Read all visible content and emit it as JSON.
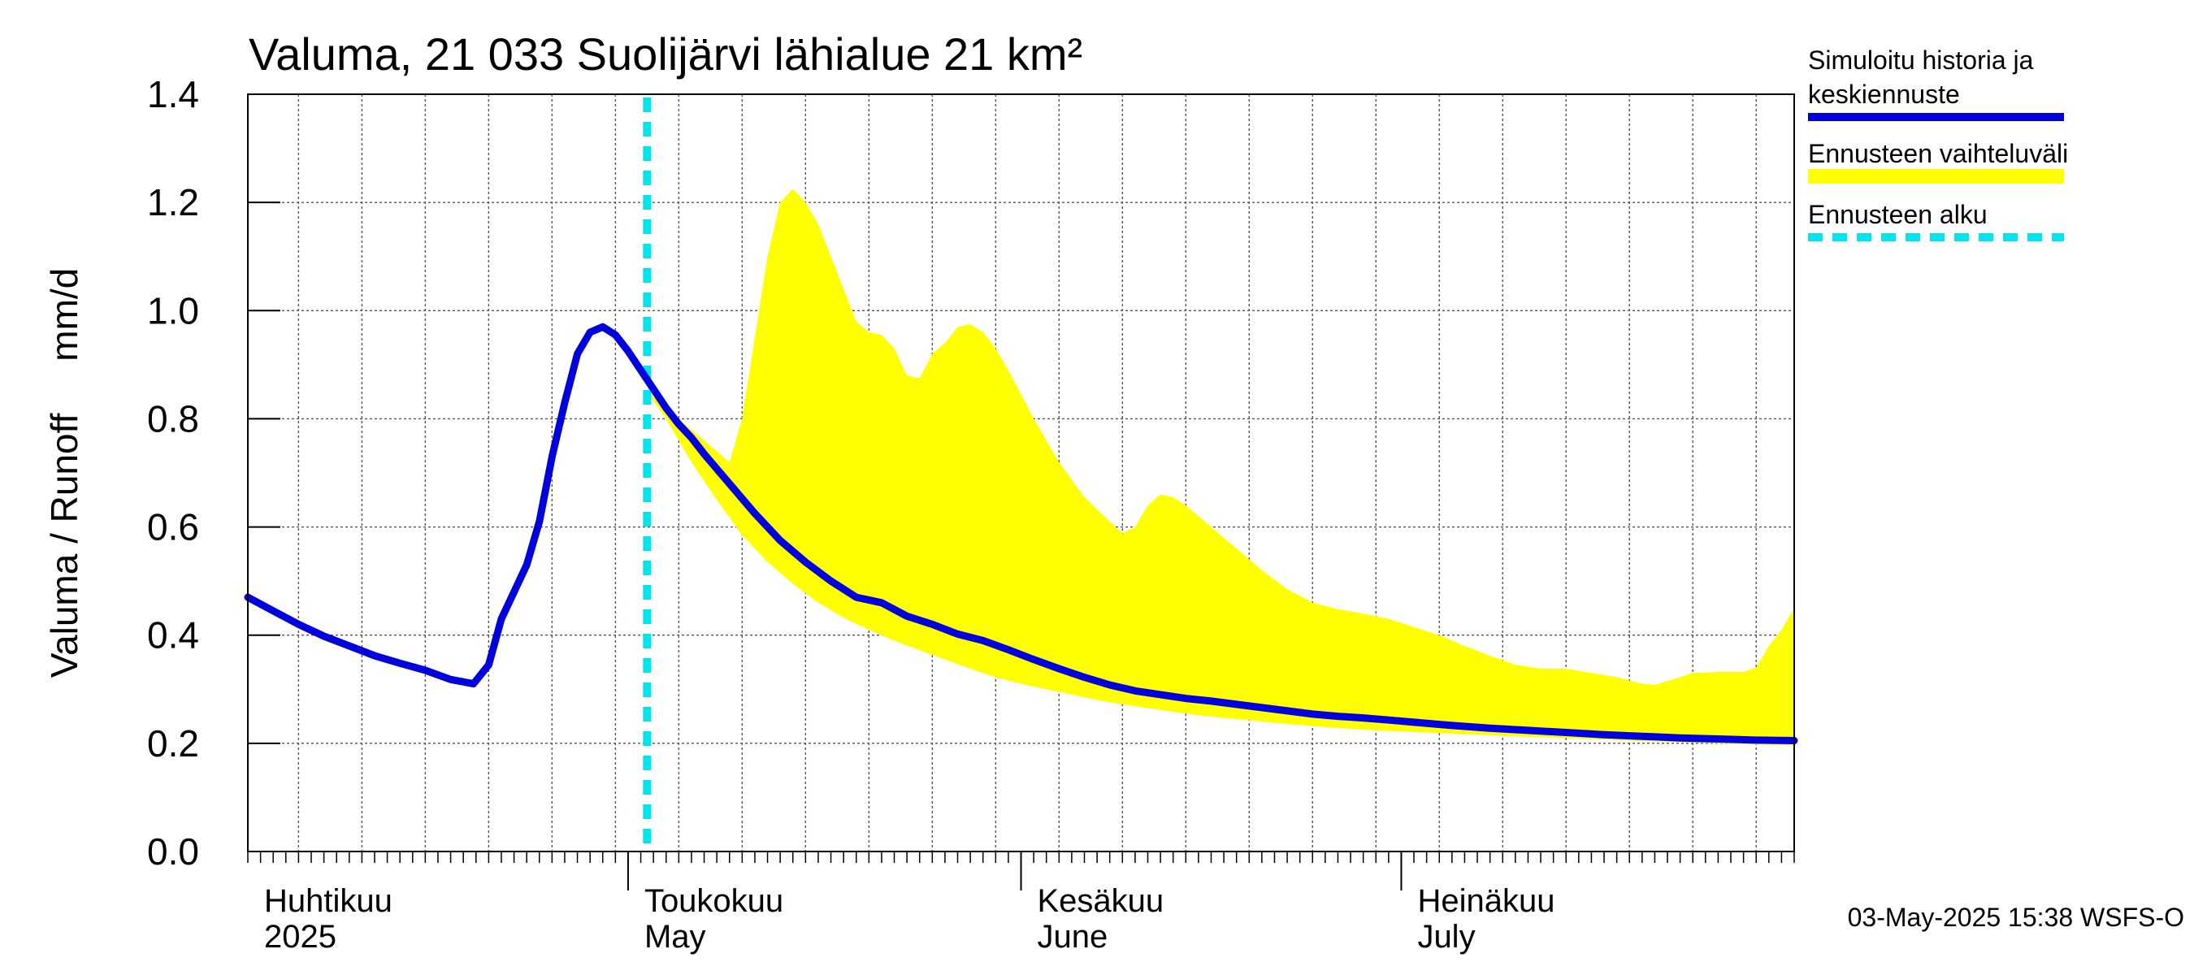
{
  "chart_data": {
    "type": "line",
    "title": "Valuma, 21 033 Suolijärvi lähialue 21 km²",
    "ylabel": "Valuma / Runoff     mm/d",
    "ylim": [
      0,
      1.4
    ],
    "yticks": [
      "0.0",
      "0.2",
      "0.4",
      "0.6",
      "0.8",
      "1.0",
      "1.2",
      "1.4"
    ],
    "x_range_days": [
      0,
      122
    ],
    "month_labels": [
      {
        "line1": "Huhtikuu",
        "line2": "2025",
        "day": 0
      },
      {
        "line1": "Toukokuu",
        "line2": "May",
        "day": 30
      },
      {
        "line1": "Kesäkuu",
        "line2": "June",
        "day": 61
      },
      {
        "line1": "Heinäkuu",
        "line2": "July",
        "day": 91
      }
    ],
    "forecast_start_day": 31.5,
    "history": {
      "name": "Simuloitu historia ja keskiennuste",
      "color": "#0000dd",
      "points": [
        [
          0,
          0.47
        ],
        [
          2,
          0.445
        ],
        [
          4,
          0.42
        ],
        [
          6,
          0.398
        ],
        [
          8,
          0.38
        ],
        [
          10,
          0.362
        ],
        [
          12,
          0.348
        ],
        [
          14,
          0.335
        ],
        [
          16,
          0.318
        ],
        [
          17.8,
          0.31
        ],
        [
          19,
          0.345
        ],
        [
          20,
          0.43
        ],
        [
          21,
          0.48
        ],
        [
          22,
          0.53
        ],
        [
          23,
          0.61
        ],
        [
          24,
          0.73
        ],
        [
          25,
          0.83
        ],
        [
          26,
          0.92
        ],
        [
          27,
          0.96
        ],
        [
          28,
          0.97
        ],
        [
          29,
          0.955
        ],
        [
          30,
          0.925
        ],
        [
          31,
          0.89
        ],
        [
          32,
          0.855
        ],
        [
          33,
          0.82
        ],
        [
          34,
          0.79
        ],
        [
          35,
          0.765
        ],
        [
          36,
          0.735
        ],
        [
          38,
          0.68
        ],
        [
          40,
          0.625
        ],
        [
          42,
          0.575
        ],
        [
          44,
          0.535
        ],
        [
          46,
          0.5
        ],
        [
          48,
          0.47
        ],
        [
          50,
          0.46
        ],
        [
          52,
          0.435
        ],
        [
          54,
          0.42
        ],
        [
          56,
          0.402
        ],
        [
          58,
          0.39
        ],
        [
          60,
          0.373
        ],
        [
          62,
          0.355
        ],
        [
          64,
          0.338
        ],
        [
          66,
          0.322
        ],
        [
          68,
          0.308
        ],
        [
          70,
          0.297
        ],
        [
          72,
          0.29
        ],
        [
          74,
          0.283
        ],
        [
          76,
          0.278
        ],
        [
          78,
          0.272
        ],
        [
          80,
          0.266
        ],
        [
          82,
          0.26
        ],
        [
          84,
          0.254
        ],
        [
          86,
          0.25
        ],
        [
          88,
          0.247
        ],
        [
          90,
          0.243
        ],
        [
          92,
          0.239
        ],
        [
          95,
          0.233
        ],
        [
          98,
          0.228
        ],
        [
          101,
          0.224
        ],
        [
          104,
          0.22
        ],
        [
          107,
          0.216
        ],
        [
          110,
          0.213
        ],
        [
          113,
          0.21
        ],
        [
          116,
          0.208
        ],
        [
          119,
          0.206
        ],
        [
          122,
          0.205
        ]
      ]
    },
    "range_band": {
      "name": "Ennusteen vaihteluväli",
      "color": "#ffff00",
      "upper": [
        [
          31.5,
          0.85
        ],
        [
          33,
          0.82
        ],
        [
          35,
          0.78
        ],
        [
          37,
          0.74
        ],
        [
          38,
          0.72
        ],
        [
          39,
          0.8
        ],
        [
          40,
          0.95
        ],
        [
          41,
          1.1
        ],
        [
          42,
          1.2
        ],
        [
          43,
          1.225
        ],
        [
          44,
          1.2
        ],
        [
          45,
          1.16
        ],
        [
          46,
          1.1
        ],
        [
          47,
          1.04
        ],
        [
          48,
          0.98
        ],
        [
          49,
          0.96
        ],
        [
          50,
          0.955
        ],
        [
          51,
          0.93
        ],
        [
          52,
          0.88
        ],
        [
          53,
          0.875
        ],
        [
          54,
          0.92
        ],
        [
          55,
          0.94
        ],
        [
          56,
          0.97
        ],
        [
          57,
          0.975
        ],
        [
          58,
          0.96
        ],
        [
          59,
          0.93
        ],
        [
          60,
          0.89
        ],
        [
          62,
          0.8
        ],
        [
          64,
          0.72
        ],
        [
          66,
          0.655
        ],
        [
          68,
          0.61
        ],
        [
          69,
          0.588
        ],
        [
          70,
          0.6
        ],
        [
          71,
          0.64
        ],
        [
          72,
          0.66
        ],
        [
          73,
          0.655
        ],
        [
          74,
          0.64
        ],
        [
          76,
          0.6
        ],
        [
          78,
          0.56
        ],
        [
          80,
          0.52
        ],
        [
          82,
          0.485
        ],
        [
          84,
          0.46
        ],
        [
          86,
          0.448
        ],
        [
          88,
          0.44
        ],
        [
          90,
          0.43
        ],
        [
          92,
          0.415
        ],
        [
          94,
          0.4
        ],
        [
          96,
          0.38
        ],
        [
          98,
          0.362
        ],
        [
          100,
          0.345
        ],
        [
          102,
          0.338
        ],
        [
          104,
          0.338
        ],
        [
          106,
          0.33
        ],
        [
          108,
          0.322
        ],
        [
          110,
          0.31
        ],
        [
          111,
          0.308
        ],
        [
          112,
          0.315
        ],
        [
          114,
          0.33
        ],
        [
          116,
          0.332
        ],
        [
          118,
          0.332
        ],
        [
          119,
          0.34
        ],
        [
          120,
          0.38
        ],
        [
          121,
          0.41
        ],
        [
          122,
          0.45
        ]
      ],
      "lower": [
        [
          31.5,
          0.85
        ],
        [
          33,
          0.8
        ],
        [
          35,
          0.72
        ],
        [
          37,
          0.65
        ],
        [
          39,
          0.585
        ],
        [
          41,
          0.535
        ],
        [
          43,
          0.495
        ],
        [
          45,
          0.46
        ],
        [
          47,
          0.432
        ],
        [
          49,
          0.41
        ],
        [
          51,
          0.39
        ],
        [
          53,
          0.372
        ],
        [
          55,
          0.355
        ],
        [
          57,
          0.338
        ],
        [
          59,
          0.322
        ],
        [
          61,
          0.31
        ],
        [
          63,
          0.3
        ],
        [
          65,
          0.29
        ],
        [
          67,
          0.28
        ],
        [
          69,
          0.272
        ],
        [
          71,
          0.265
        ],
        [
          73,
          0.258
        ],
        [
          75,
          0.252
        ],
        [
          77,
          0.247
        ],
        [
          79,
          0.243
        ],
        [
          81,
          0.238
        ],
        [
          83,
          0.234
        ],
        [
          85,
          0.23
        ],
        [
          87,
          0.227
        ],
        [
          89,
          0.224
        ],
        [
          92,
          0.221
        ],
        [
          95,
          0.218
        ],
        [
          98,
          0.215
        ],
        [
          101,
          0.212
        ],
        [
          104,
          0.21
        ],
        [
          107,
          0.207
        ],
        [
          110,
          0.204
        ],
        [
          113,
          0.202
        ],
        [
          116,
          0.2
        ],
        [
          119,
          0.198
        ],
        [
          122,
          0.196
        ]
      ]
    },
    "forecast_marker": {
      "name": "Ennusteen alku",
      "color": "#00e5ee"
    },
    "legend_position": "right"
  },
  "timestamp": "03-May-2025 15:38 WSFS-O"
}
